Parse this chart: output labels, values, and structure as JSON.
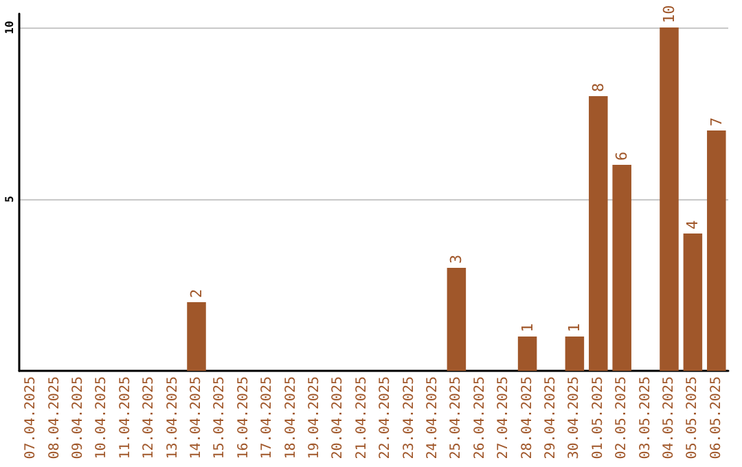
{
  "chart_data": {
    "type": "bar",
    "categories": [
      "07.04.2025",
      "08.04.2025",
      "09.04.2025",
      "10.04.2025",
      "11.04.2025",
      "12.04.2025",
      "13.04.2025",
      "14.04.2025",
      "15.04.2025",
      "16.04.2025",
      "17.04.2025",
      "18.04.2025",
      "19.04.2025",
      "20.04.2025",
      "21.04.2025",
      "22.04.2025",
      "23.04.2025",
      "24.04.2025",
      "25.04.2025",
      "26.04.2025",
      "27.04.2025",
      "28.04.2025",
      "29.04.2025",
      "30.04.2025",
      "01.05.2025",
      "02.05.2025",
      "03.05.2025",
      "04.05.2025",
      "05.05.2025",
      "06.05.2025"
    ],
    "values": [
      null,
      null,
      null,
      null,
      null,
      null,
      null,
      2,
      null,
      null,
      null,
      null,
      null,
      null,
      null,
      null,
      null,
      null,
      3,
      null,
      null,
      1,
      null,
      1,
      8,
      6,
      null,
      10,
      4,
      7
    ],
    "color": "#a0572a",
    "ylim": [
      0,
      10.4
    ],
    "yticks": [
      5,
      10
    ],
    "grid": "y",
    "data_labels": true
  }
}
